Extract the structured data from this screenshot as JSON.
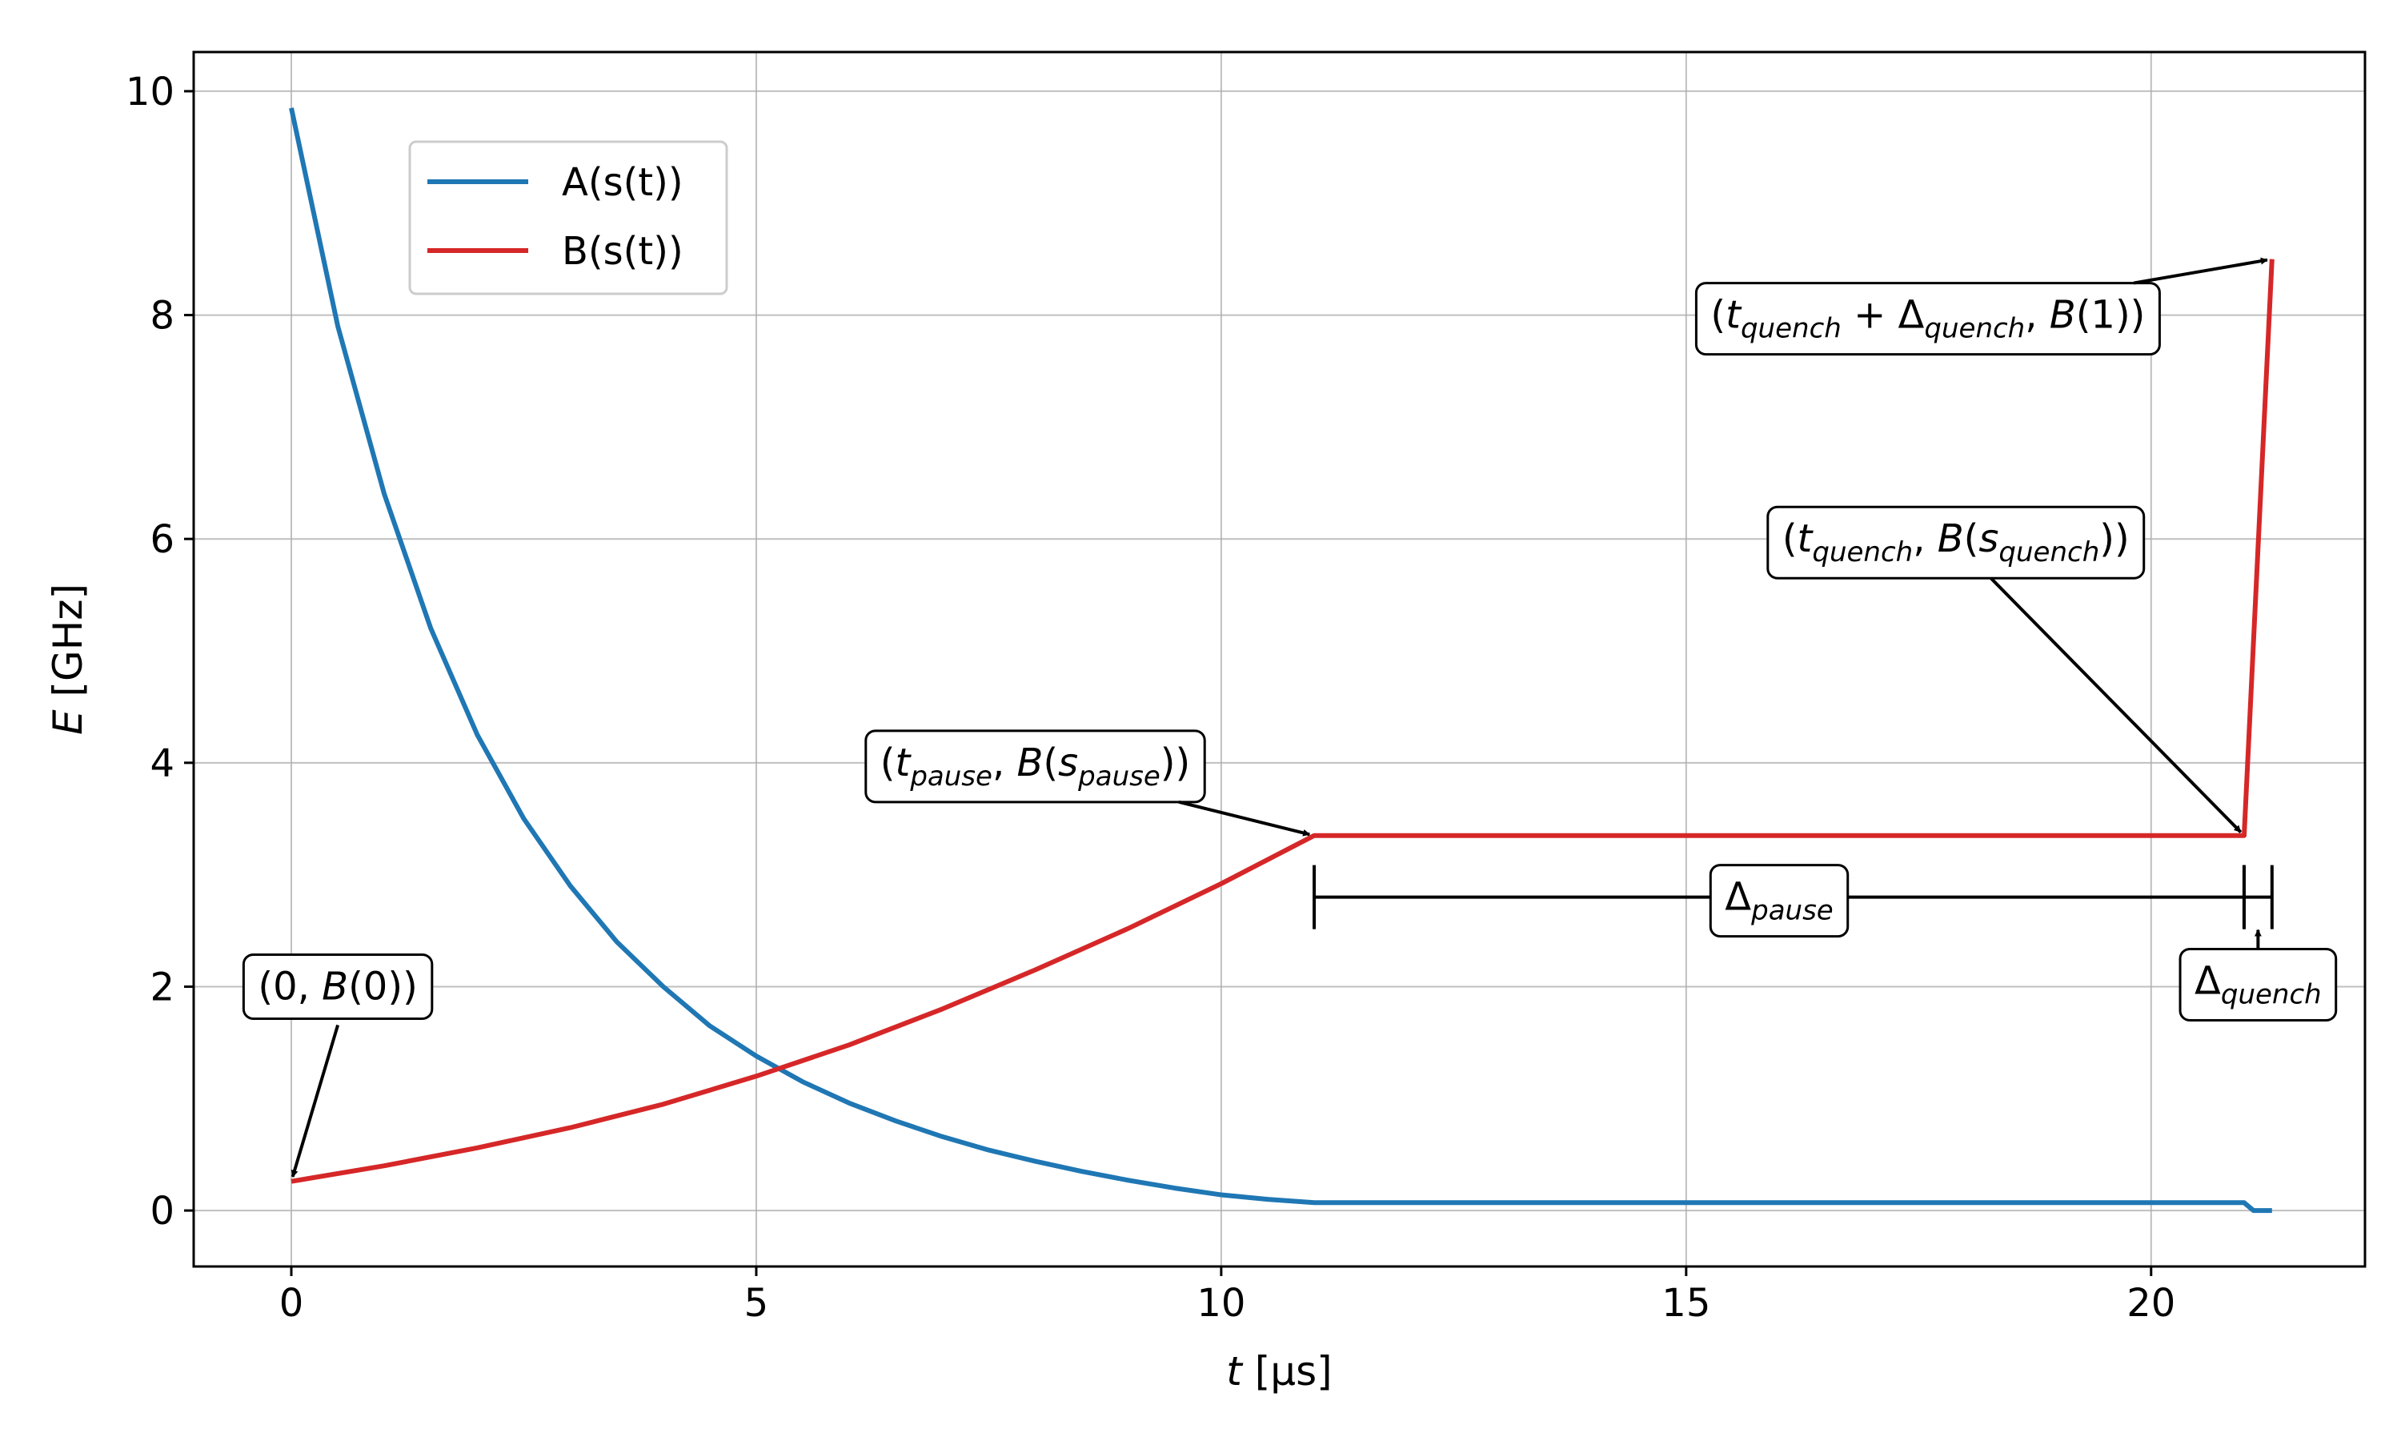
{
  "chart_data": {
    "type": "line",
    "xlabel": "t [μs]",
    "ylabel": "E [GHz]",
    "xlim": [
      -1.05,
      22.3
    ],
    "ylim": [
      -0.5,
      10.35
    ],
    "xticks": [
      0,
      5,
      10,
      15,
      20
    ],
    "yticks": [
      0,
      2,
      4,
      6,
      8,
      10
    ],
    "grid": true,
    "legend_position": "upper-left",
    "series": [
      {
        "name": "A(s(t))",
        "color": "#1f77b4",
        "x": [
          0,
          0.5,
          1,
          1.5,
          2,
          2.5,
          3,
          3.5,
          4,
          4.5,
          5,
          5.5,
          6,
          6.5,
          7,
          7.5,
          8,
          8.5,
          9,
          9.5,
          10,
          10.5,
          11,
          21,
          21.1,
          21.3
        ],
        "y": [
          9.85,
          7.9,
          6.4,
          5.2,
          4.25,
          3.5,
          2.9,
          2.4,
          2.0,
          1.65,
          1.38,
          1.15,
          0.96,
          0.8,
          0.66,
          0.54,
          0.44,
          0.35,
          0.27,
          0.2,
          0.14,
          0.1,
          0.07,
          0.07,
          0.0,
          0.0
        ]
      },
      {
        "name": "B(s(t))",
        "color": "#d62728",
        "x": [
          0,
          1,
          2,
          3,
          4,
          5,
          6,
          7,
          8,
          9,
          10,
          11,
          21,
          21.3
        ],
        "y": [
          0.26,
          0.4,
          0.56,
          0.74,
          0.95,
          1.2,
          1.48,
          1.8,
          2.15,
          2.52,
          2.92,
          3.35,
          3.35,
          8.5
        ]
      }
    ],
    "pause_interval": {
      "start": 11,
      "end": 21,
      "y": 2.8
    },
    "quench_interval": {
      "start": 21,
      "end": 21.3,
      "y": 2.8
    },
    "annotations": [
      {
        "id": "start",
        "parts": [
          [
            "(0, ",
            ""
          ],
          [
            "B",
            "it"
          ],
          [
            "(0))",
            ""
          ]
        ],
        "target": [
          0,
          0.26
        ],
        "text_at": [
          0.5,
          2.0
        ]
      },
      {
        "id": "pause",
        "parts": [
          [
            "(",
            ""
          ],
          [
            "t",
            "it"
          ],
          [
            "pause",
            "sub"
          ],
          [
            ", ",
            ""
          ],
          [
            "B",
            "it"
          ],
          [
            "(",
            ""
          ],
          [
            "s",
            "it"
          ],
          [
            "pause",
            "sub"
          ],
          [
            "))",
            ""
          ]
        ],
        "target": [
          11,
          3.35
        ],
        "text_at": [
          8.0,
          4.0
        ]
      },
      {
        "id": "quench",
        "parts": [
          [
            "(",
            ""
          ],
          [
            "t",
            "it"
          ],
          [
            "quench",
            "sub"
          ],
          [
            ", ",
            ""
          ],
          [
            "B",
            "it"
          ],
          [
            "(",
            ""
          ],
          [
            "s",
            "it"
          ],
          [
            "quench",
            "sub"
          ],
          [
            "))",
            ""
          ]
        ],
        "target": [
          21.0,
          3.35
        ],
        "text_at": [
          17.9,
          6.0
        ]
      },
      {
        "id": "end",
        "parts": [
          [
            "(",
            ""
          ],
          [
            "t",
            "it"
          ],
          [
            "quench",
            "sub"
          ],
          [
            " + Δ",
            ""
          ],
          [
            "quench",
            "sub"
          ],
          [
            ", ",
            ""
          ],
          [
            "B",
            "it"
          ],
          [
            "(1))",
            ""
          ]
        ],
        "target": [
          21.3,
          8.5
        ],
        "text_at": [
          17.6,
          8.0
        ]
      },
      {
        "id": "delta-pause",
        "parts": [
          [
            "Δ",
            ""
          ],
          [
            "pause",
            "sub"
          ]
        ],
        "text_at": [
          16.0,
          2.8
        ]
      },
      {
        "id": "delta-quench",
        "parts": [
          [
            "Δ",
            ""
          ],
          [
            "quench",
            "sub"
          ]
        ],
        "target": [
          21.15,
          2.55
        ],
        "text_at": [
          21.15,
          2.05
        ]
      }
    ]
  }
}
